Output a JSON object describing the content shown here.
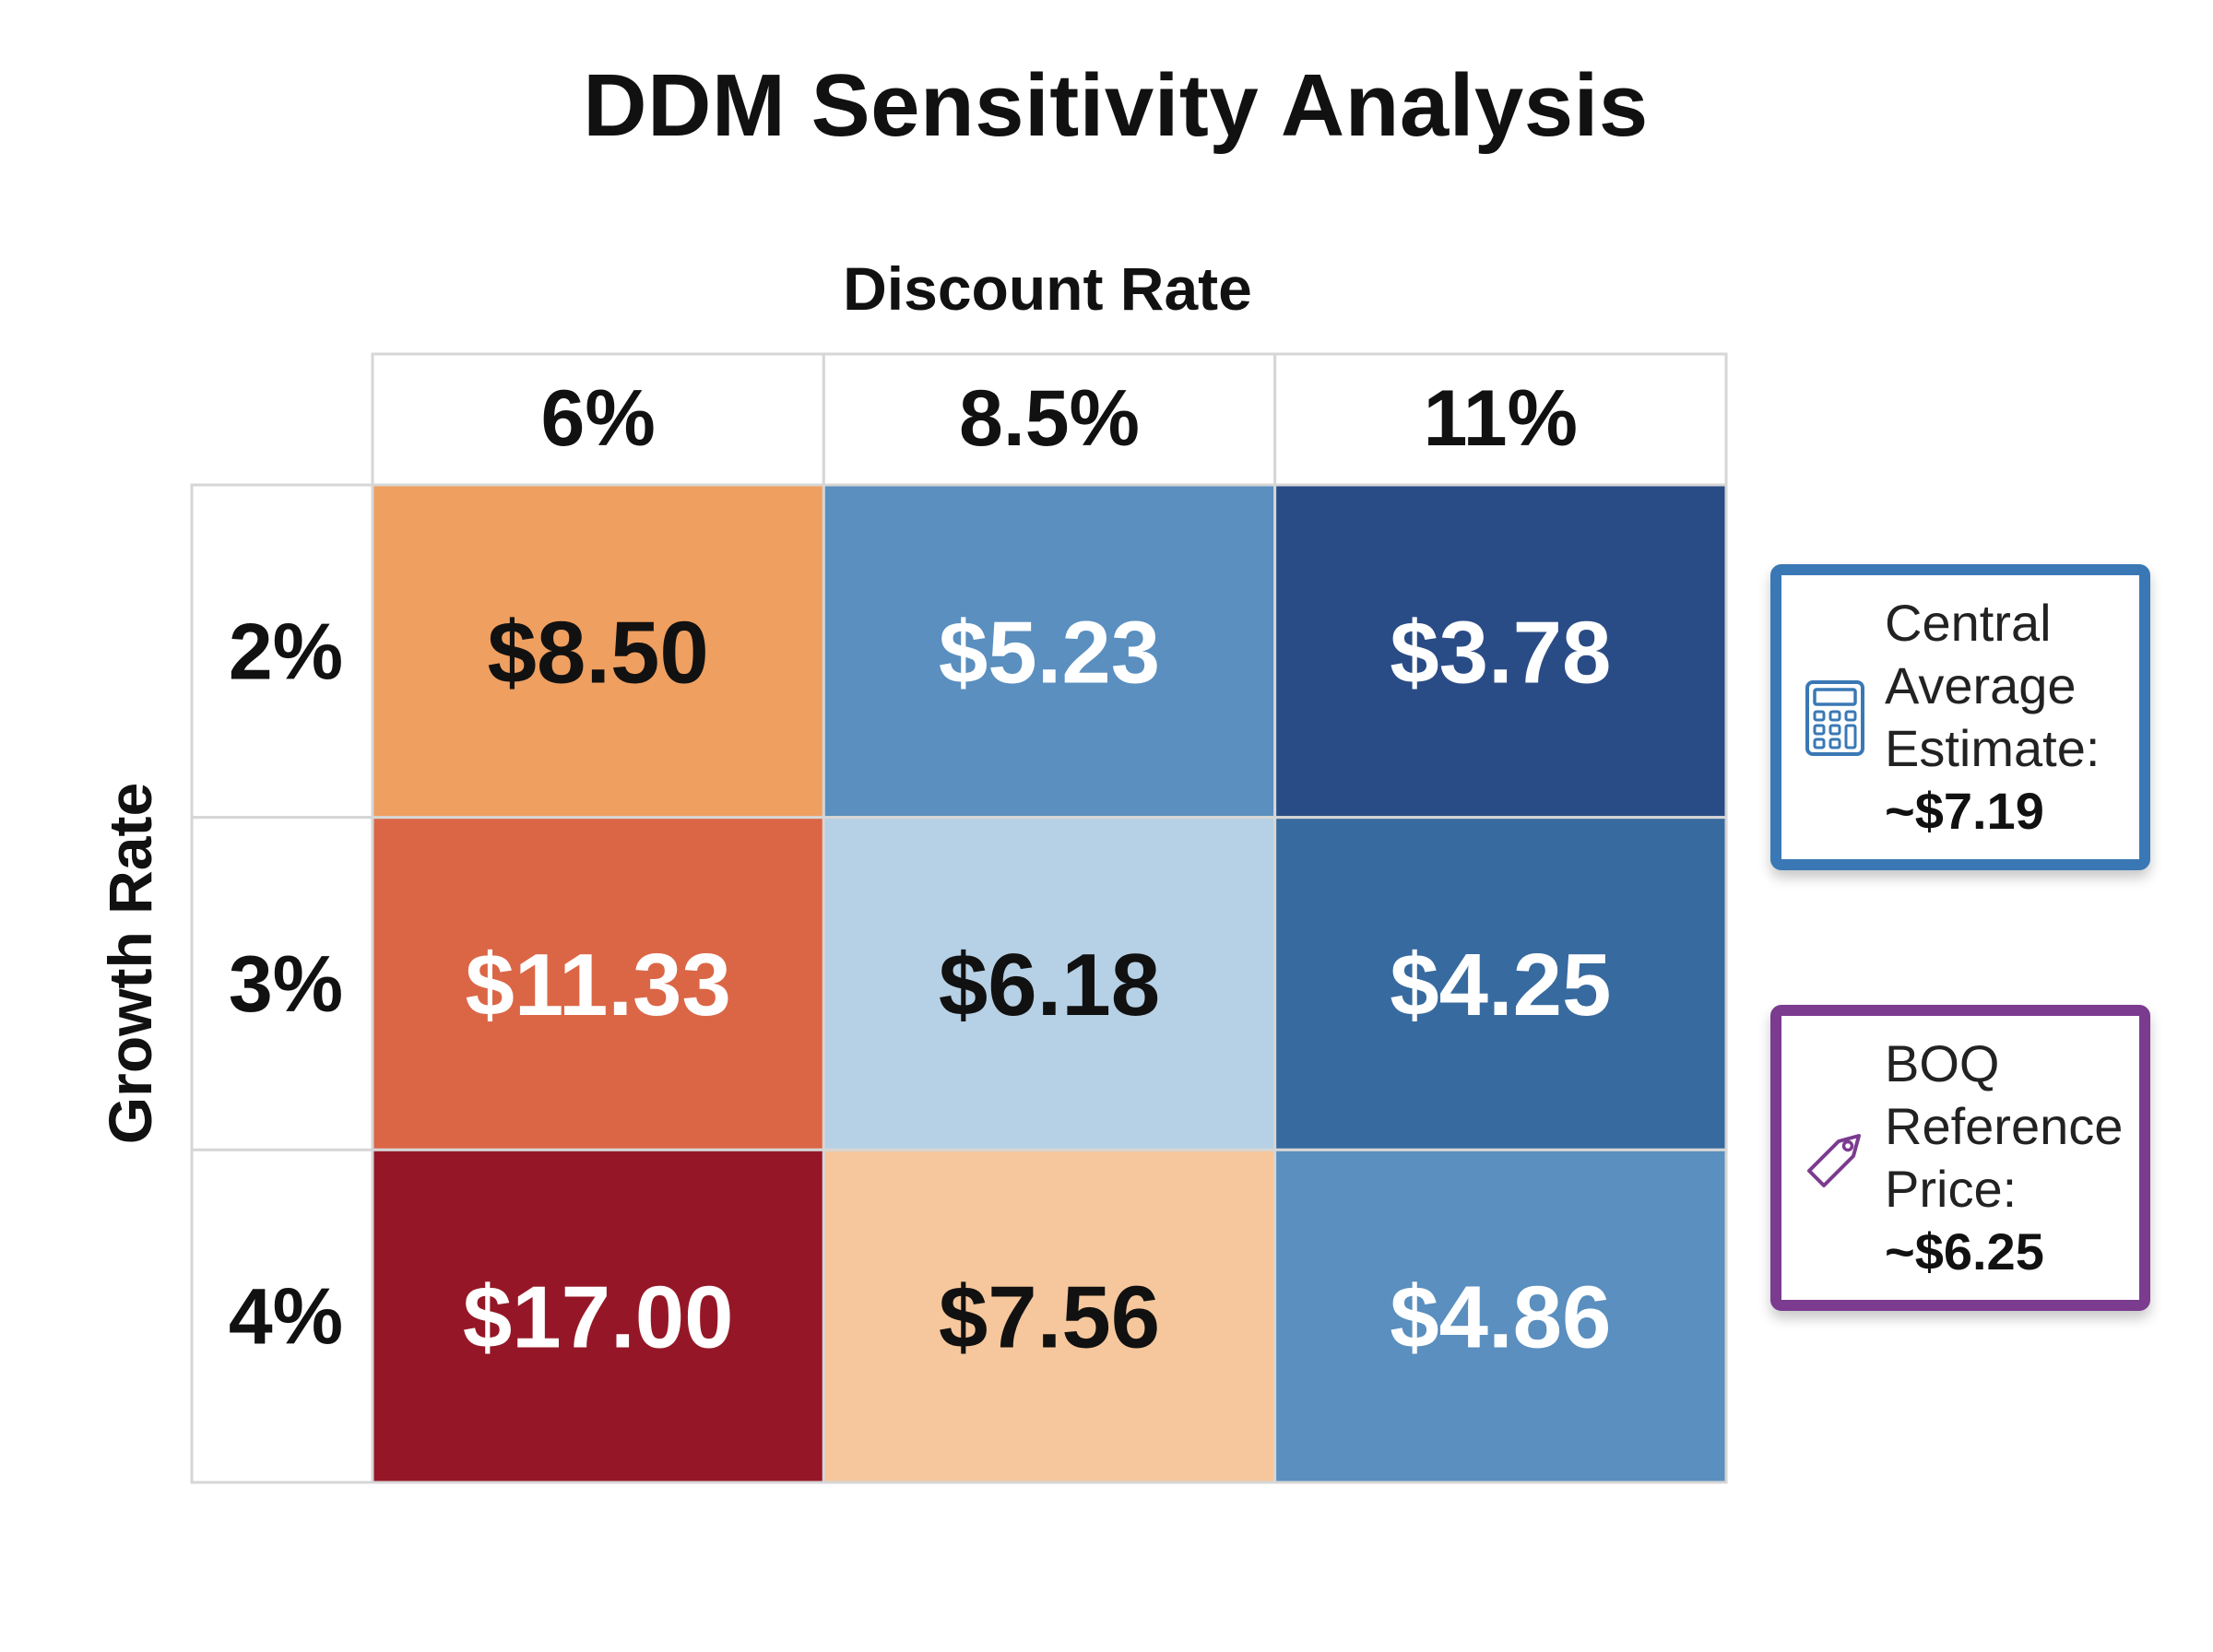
{
  "chart_data": {
    "type": "heatmap",
    "title": "DDM Sensitivity Analysis",
    "xlabel": "Discount Rate",
    "ylabel": "Growth Rate",
    "x_categories": [
      "6%",
      "8.5%",
      "11%"
    ],
    "y_categories": [
      "2%",
      "3%",
      "4%"
    ],
    "values": [
      [
        "$8.50",
        "$5.23",
        "$3.78"
      ],
      [
        "$11.33",
        "$6.18",
        "$4.25"
      ],
      [
        "$17.00",
        "$7.56",
        "$4.86"
      ]
    ],
    "numeric_values": [
      [
        8.5,
        5.23,
        3.78
      ],
      [
        11.33,
        6.18,
        4.25
      ],
      [
        17.0,
        7.56,
        4.86
      ]
    ],
    "cell_colors": [
      [
        "#ef9f60",
        "#5a8fbf",
        "#2a4c86"
      ],
      [
        "#db6646",
        "#b6d0e5",
        "#376a9f"
      ],
      [
        "#951727",
        "#f6c79c",
        "#5a8fbf"
      ]
    ],
    "text_colors": [
      [
        "#111111",
        "#ffffff",
        "#ffffff"
      ],
      [
        "#ffffff",
        "#111111",
        "#ffffff"
      ],
      [
        "#ffffff",
        "#111111",
        "#ffffff"
      ]
    ],
    "annotations": [
      {
        "icon": "calculator-icon",
        "border_color": "#3a78b5",
        "lines": [
          "Central",
          "Average",
          "Estimate:"
        ],
        "value": "~$7.19"
      },
      {
        "icon": "price-tag-icon",
        "border_color": "#7b3b8f",
        "lines": [
          "BOQ",
          "Reference",
          "Price:"
        ],
        "value": "~$6.25"
      }
    ]
  }
}
